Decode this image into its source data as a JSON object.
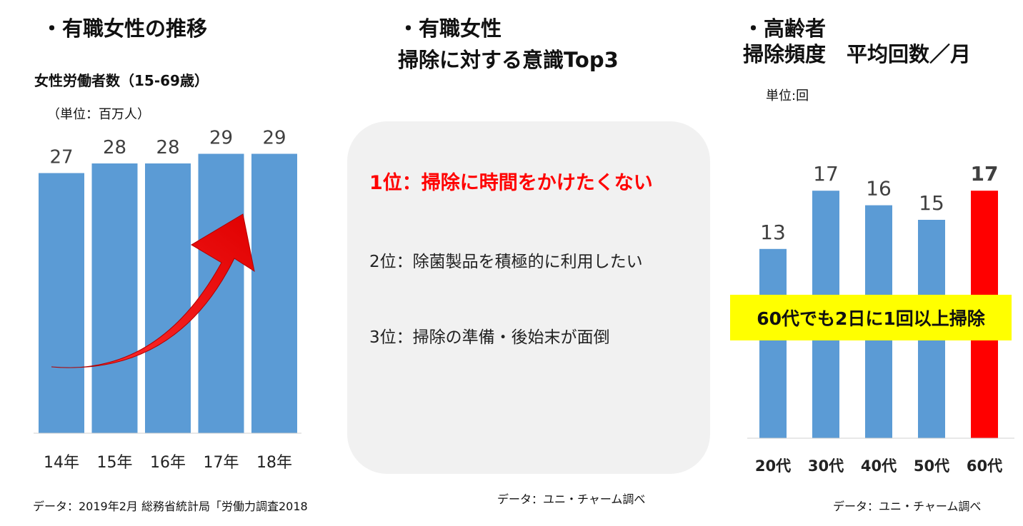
{
  "left": {
    "heading": "・有職女性の推移",
    "subtitle": "女性労働者数（15-69歳）",
    "unit": "（単位：百万人）",
    "source": "データ：2019年2月 総務省統計局「労働力調査2018"
  },
  "middle": {
    "heading_line1": "・有職女性",
    "heading_line2": "掃除に対する意識Top3",
    "rank1": "1位：掃除に時間をかけたくない",
    "rank2": "2位：除菌製品を積極的に利用したい",
    "rank3": "3位：掃除の準備・後始末が面倒",
    "source": "データ：ユニ・チャーム調べ"
  },
  "right": {
    "heading_line1": "・高齢者",
    "heading_line2": "掃除頻度　平均回数／月",
    "unit": "単位:回",
    "banner": "60代でも2日に1回以上掃除",
    "source": "データ：ユニ・チャーム調べ"
  },
  "colors": {
    "bar_blue": "#5b9bd5",
    "highlight_red": "#ff0000",
    "banner_yellow": "#ffff00",
    "panel_gray": "#f1f1f1",
    "arrow_red": "#ff0000"
  },
  "chart_data": [
    {
      "type": "bar",
      "categories": [
        "14年",
        "15年",
        "16年",
        "17年",
        "18年"
      ],
      "values": [
        27,
        28,
        28,
        29,
        29
      ],
      "data_labels": [
        "27",
        "28",
        "28",
        "29",
        "29"
      ],
      "title": "女性労働者数（15-69歳）",
      "ylabel": "",
      "xlabel": "",
      "ylim": [
        0,
        40
      ],
      "grid": false,
      "icons": [
        "trend-arrow-icon"
      ]
    },
    {
      "type": "bar",
      "categories": [
        "20代",
        "30代",
        "40代",
        "50代",
        "60代"
      ],
      "values": [
        13,
        17,
        16,
        15,
        17
      ],
      "data_labels": [
        "13",
        "17",
        "16",
        "15",
        "17"
      ],
      "highlight_index": 4,
      "title": "掃除頻度　平均回数／月",
      "ylabel": "",
      "xlabel": "",
      "ylim": [
        0,
        25
      ],
      "grid": false
    }
  ]
}
